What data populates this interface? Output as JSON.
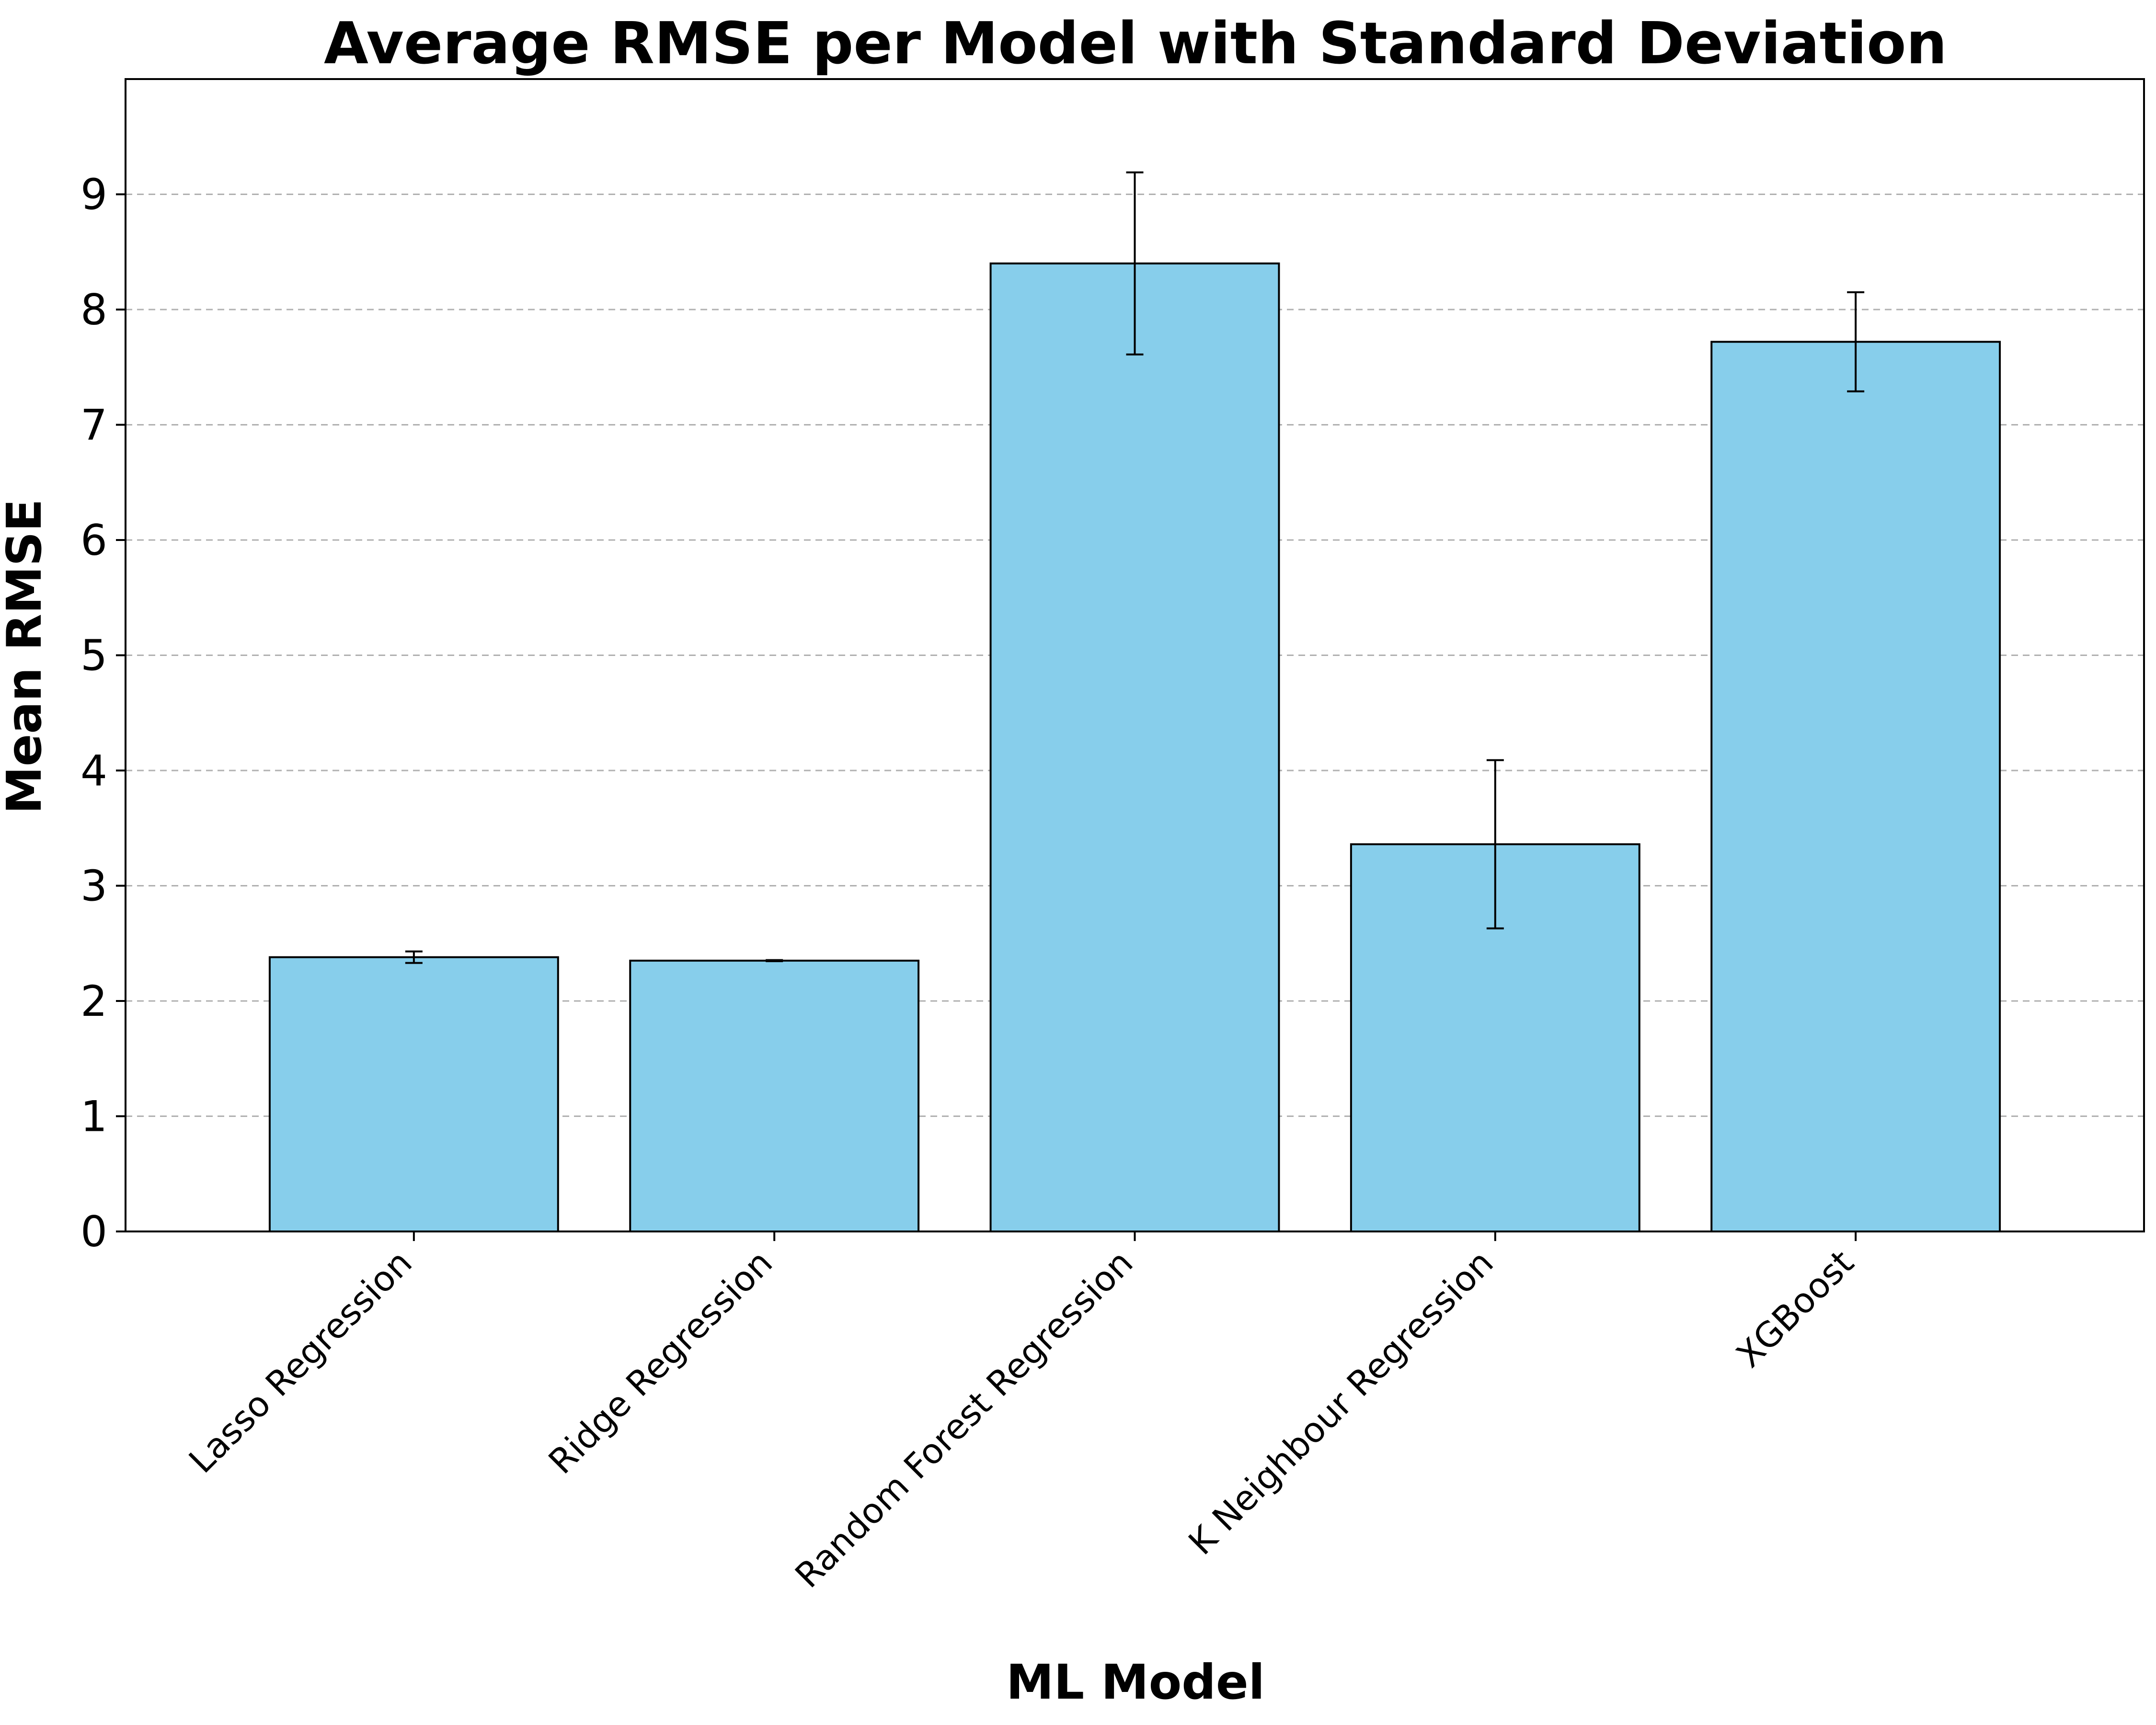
{
  "chart_data": {
    "type": "bar",
    "title": "Average RMSE per Model with Standard Deviation",
    "xlabel": "ML Model",
    "ylabel": "Mean RMSE",
    "categories": [
      "Lasso Regression",
      "Ridge Regression",
      "Random Forest Regression",
      "K Neighbour Regression",
      "XGBoost"
    ],
    "values": [
      2.38,
      2.35,
      8.4,
      3.36,
      7.72
    ],
    "errors": [
      0.05,
      0.005,
      0.79,
      0.73,
      0.43
    ],
    "ylim": [
      0,
      10
    ],
    "yticks": [
      "0",
      "1",
      "2",
      "3",
      "4",
      "5",
      "6",
      "7",
      "8",
      "9"
    ],
    "grid": "horizontal dashed",
    "bar_color": "#87CEEB",
    "edge_color": "#000000",
    "grid_color": "#b0b0b0"
  }
}
